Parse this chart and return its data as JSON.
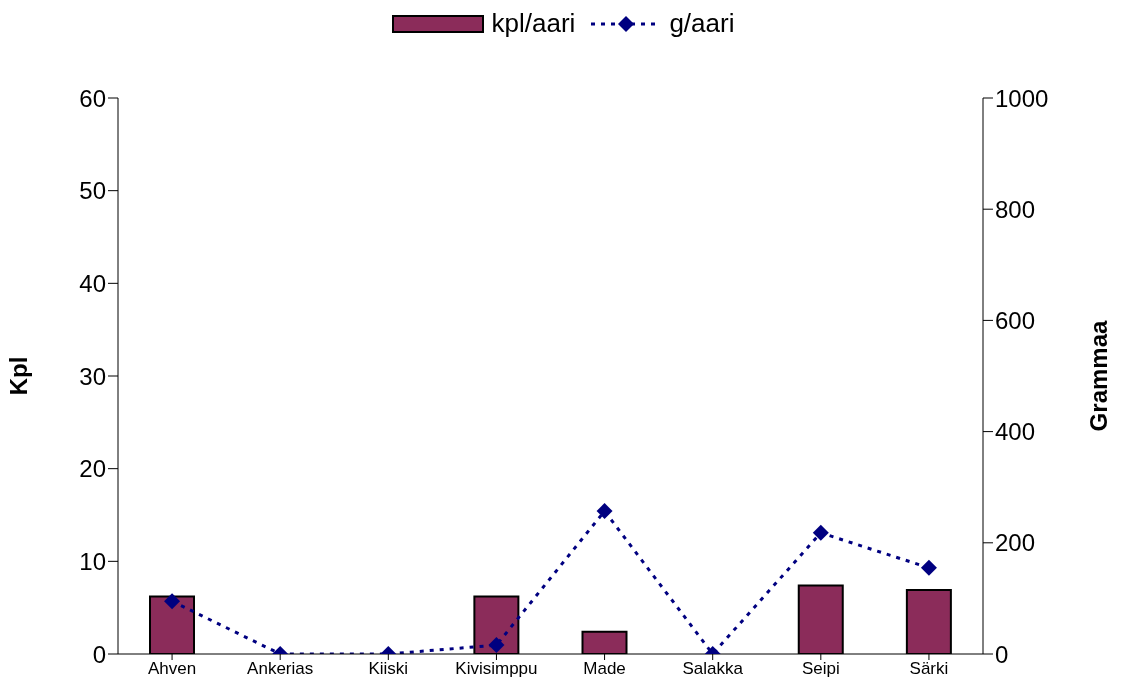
{
  "chart_data": {
    "type": "bar",
    "categories": [
      "Ahven",
      "Ankerias",
      "Kiiski",
      "Kivisimppu",
      "Made",
      "Salakka",
      "Seipi",
      "Särki"
    ],
    "series": [
      {
        "name": "kpl/aari",
        "color": "#8b2c5a",
        "values": [
          6.2,
          0,
          0,
          6.2,
          2.4,
          0,
          7.4,
          6.9
        ]
      },
      {
        "name": "g/aari",
        "type": "line",
        "axis": "y2",
        "color": "#000080",
        "marker": "diamond",
        "line_style": "dotted",
        "values": [
          95,
          0,
          0,
          16,
          257,
          0,
          218,
          155
        ]
      }
    ],
    "ylabel": "Kpl",
    "y2label": "Grammaa",
    "ylim": [
      0,
      60
    ],
    "yticks": [
      0,
      10,
      20,
      30,
      40,
      50,
      60
    ],
    "y2lim": [
      0,
      1000
    ],
    "y2ticks": [
      0,
      200,
      400,
      600,
      800,
      1000
    ],
    "legend": "top"
  }
}
